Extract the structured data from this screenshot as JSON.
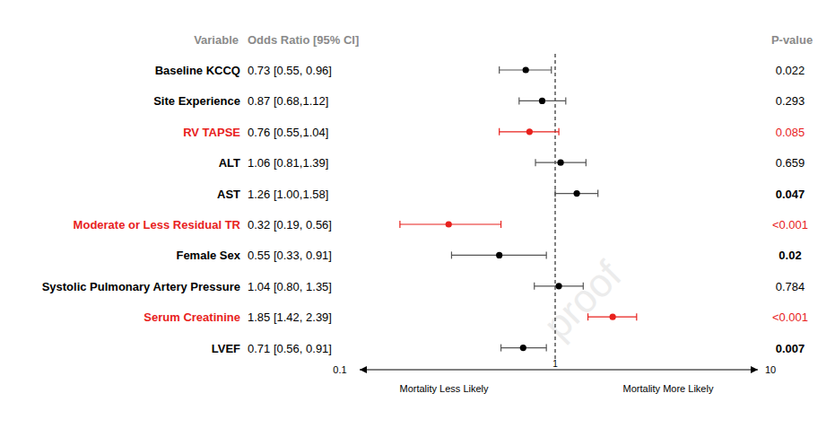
{
  "chart_data": {
    "type": "forest",
    "column_headers": [
      "Variable",
      "Odds Ratio [95% CI]",
      "P-value"
    ],
    "categories": [
      "Baseline KCCQ",
      "Site Experience",
      "RV TAPSE",
      "ALT",
      "AST",
      "Moderate or Less Residual TR",
      "Female Sex",
      "Systolic Pulmonary Artery Pressure",
      "Serum Creatinine",
      "LVEF"
    ],
    "values": [
      0.73,
      0.87,
      0.76,
      1.06,
      1.26,
      0.32,
      0.55,
      1.04,
      1.85,
      0.71
    ],
    "ci_low": [
      0.55,
      0.68,
      0.55,
      0.81,
      1.0,
      0.19,
      0.33,
      0.8,
      1.42,
      0.56
    ],
    "ci_high": [
      0.96,
      1.12,
      1.04,
      1.39,
      1.58,
      0.56,
      0.91,
      1.35,
      2.39,
      0.91
    ],
    "value_labels": [
      "0.73 [0.55, 0.96]",
      "0.87 [0.68,1.12]",
      "0.76 [0.55,1.04]",
      "1.06 [0.81,1.39]",
      "1.26 [1.00,1.58]",
      "0.32 [0.19, 0.56]",
      "0.55 [0.33, 0.91]",
      "1.04 [0.80, 1.35]",
      "1.85 [1.42, 2.39]",
      "0.71 [0.56, 0.91]"
    ],
    "p_values": [
      "0.022",
      "0.293",
      "0.085",
      "0.659",
      "0.047",
      "<0.001",
      "0.02",
      "0.784",
      "<0.001",
      "0.007"
    ],
    "colors": [
      "#000000",
      "#000000",
      "#e8211d",
      "#000000",
      "#000000",
      "#e8211d",
      "#000000",
      "#000000",
      "#e8211d",
      "#000000"
    ],
    "xlim": [
      0.1,
      10
    ],
    "xticks": [
      0.1,
      1,
      10
    ],
    "log": "x",
    "annotations": [
      "Mortality Less Likely",
      "Mortality More Likely"
    ],
    "watermark": "proof"
  }
}
